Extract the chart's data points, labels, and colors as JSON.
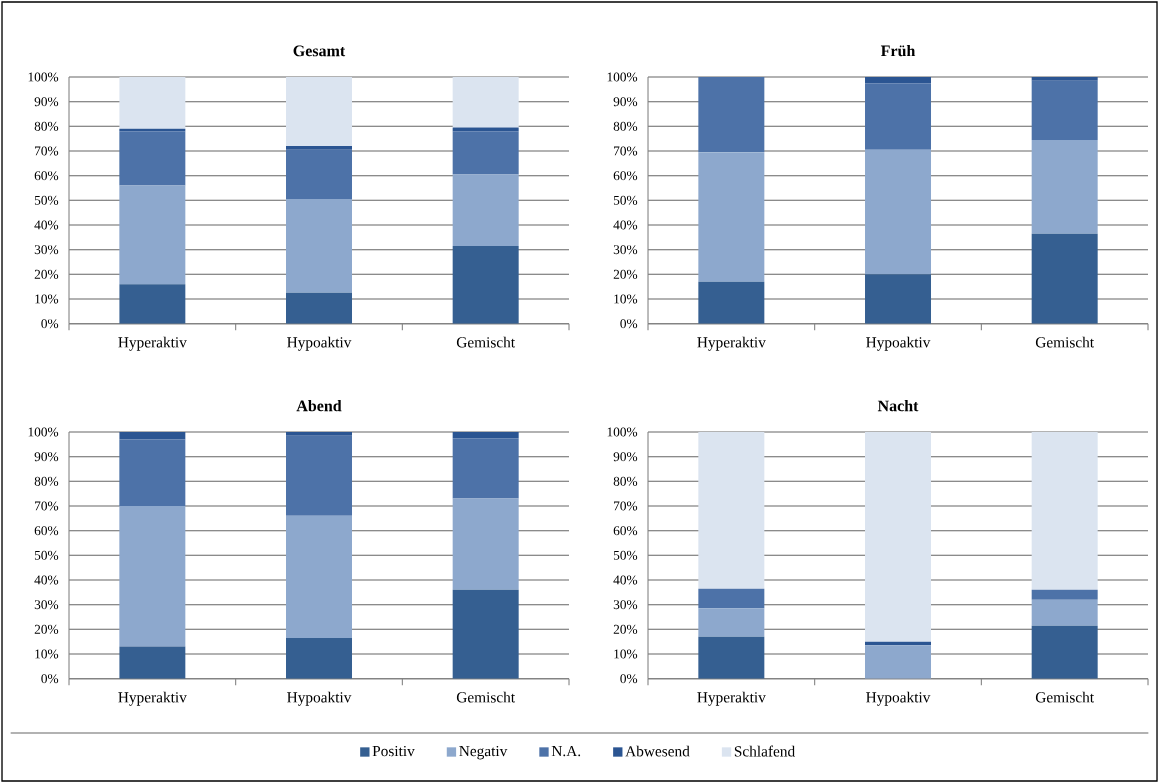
{
  "chart_data": [
    {
      "type": "bar",
      "title": "Gesamt",
      "stacked": true,
      "grid": "y",
      "categories": [
        "Hyperaktiv",
        "Hypoaktiv",
        "Gemischt"
      ],
      "ylim": [
        0,
        100
      ],
      "yticks": [
        {
          "value": 0,
          "label": "0%"
        },
        {
          "value": 10,
          "label": "10%"
        },
        {
          "value": 20,
          "label": "20%"
        },
        {
          "value": 30,
          "label": "30%"
        },
        {
          "value": 40,
          "label": "40%"
        },
        {
          "value": 50,
          "label": "50%"
        },
        {
          "value": 60,
          "label": "60%"
        },
        {
          "value": 70,
          "label": "70%"
        },
        {
          "value": 80,
          "label": "80%"
        },
        {
          "value": 90,
          "label": "90%"
        },
        {
          "value": 100,
          "label": "100%"
        }
      ],
      "series": [
        {
          "color": "#355f91",
          "values": [
            16,
            12.5,
            31.5
          ]
        },
        {
          "color": "#8da8cd",
          "values": [
            40,
            38,
            29
          ]
        },
        {
          "color": "#4d72a8",
          "values": [
            22,
            20,
            17.5
          ]
        },
        {
          "color": "#2b5592",
          "values": [
            1,
            1.5,
            1.5
          ]
        },
        {
          "color": "#dbe4f0",
          "values": [
            21,
            28,
            20.5
          ]
        }
      ]
    },
    {
      "type": "bar",
      "title": "Früh",
      "stacked": true,
      "grid": "y",
      "categories": [
        "Hyperaktiv",
        "Hypoaktiv",
        "Gemischt"
      ],
      "ylim": [
        0,
        100
      ],
      "yticks": [
        {
          "value": 0,
          "label": "0%"
        },
        {
          "value": 10,
          "label": "10%"
        },
        {
          "value": 20,
          "label": "20%"
        },
        {
          "value": 30,
          "label": "30%"
        },
        {
          "value": 40,
          "label": "40%"
        },
        {
          "value": 50,
          "label": "50%"
        },
        {
          "value": 60,
          "label": "60%"
        },
        {
          "value": 70,
          "label": "70%"
        },
        {
          "value": 80,
          "label": "80%"
        },
        {
          "value": 90,
          "label": "90%"
        },
        {
          "value": 100,
          "label": "100%"
        }
      ],
      "series": [
        {
          "color": "#355f91",
          "values": [
            17,
            20,
            36.5
          ]
        },
        {
          "color": "#8da8cd",
          "values": [
            52.5,
            50.5,
            38
          ]
        },
        {
          "color": "#4d72a8",
          "values": [
            30.5,
            27,
            24
          ]
        },
        {
          "color": "#2b5592",
          "values": [
            0,
            2.5,
            1.5
          ]
        },
        {
          "color": "#dbe4f0",
          "values": [
            0,
            0,
            0
          ]
        }
      ]
    },
    {
      "type": "bar",
      "title": "Abend",
      "stacked": true,
      "grid": "y",
      "categories": [
        "Hyperaktiv",
        "Hypoaktiv",
        "Gemischt"
      ],
      "ylim": [
        0,
        100
      ],
      "yticks": [
        {
          "value": 0,
          "label": "0%"
        },
        {
          "value": 10,
          "label": "10%"
        },
        {
          "value": 20,
          "label": "20%"
        },
        {
          "value": 30,
          "label": "30%"
        },
        {
          "value": 40,
          "label": "40%"
        },
        {
          "value": 50,
          "label": "50%"
        },
        {
          "value": 60,
          "label": "60%"
        },
        {
          "value": 70,
          "label": "70%"
        },
        {
          "value": 80,
          "label": "80%"
        },
        {
          "value": 90,
          "label": "90%"
        },
        {
          "value": 100,
          "label": "100%"
        }
      ],
      "series": [
        {
          "color": "#355f91",
          "values": [
            13,
            16.5,
            36
          ]
        },
        {
          "color": "#8da8cd",
          "values": [
            57,
            49.5,
            37
          ]
        },
        {
          "color": "#4d72a8",
          "values": [
            27,
            32.5,
            24.5
          ]
        },
        {
          "color": "#2b5592",
          "values": [
            3,
            1.5,
            2.5
          ]
        },
        {
          "color": "#dbe4f0",
          "values": [
            0,
            0,
            0
          ]
        }
      ]
    },
    {
      "type": "bar",
      "title": "Nacht",
      "stacked": true,
      "grid": "y",
      "legend": "bottom",
      "categories": [
        "Hyperaktiv",
        "Hypoaktiv",
        "Gemischt"
      ],
      "ylim": [
        0,
        100
      ],
      "yticks": [
        {
          "value": 0,
          "label": "0%"
        },
        {
          "value": 10,
          "label": "10%"
        },
        {
          "value": 20,
          "label": "20%"
        },
        {
          "value": 30,
          "label": "30%"
        },
        {
          "value": 40,
          "label": "40%"
        },
        {
          "value": 50,
          "label": "50%"
        },
        {
          "value": 60,
          "label": "60%"
        },
        {
          "value": 70,
          "label": "70%"
        },
        {
          "value": 80,
          "label": "80%"
        },
        {
          "value": 90,
          "label": "90%"
        },
        {
          "value": 100,
          "label": "100%"
        }
      ],
      "series": [
        {
          "name": "Positiv",
          "color": "#355f91",
          "values": [
            17,
            0,
            21.5
          ]
        },
        {
          "name": "Negativ",
          "color": "#8da8cd",
          "values": [
            11.5,
            13.5,
            10.5
          ]
        },
        {
          "name": "N.A.",
          "color": "#4d72a8",
          "values": [
            8,
            0,
            4
          ]
        },
        {
          "name": "Abwesend",
          "color": "#2b5592",
          "values": [
            0,
            1.5,
            0
          ]
        },
        {
          "name": "Schlafend",
          "color": "#dbe4f0",
          "values": [
            63.5,
            85,
            64
          ]
        }
      ]
    }
  ]
}
